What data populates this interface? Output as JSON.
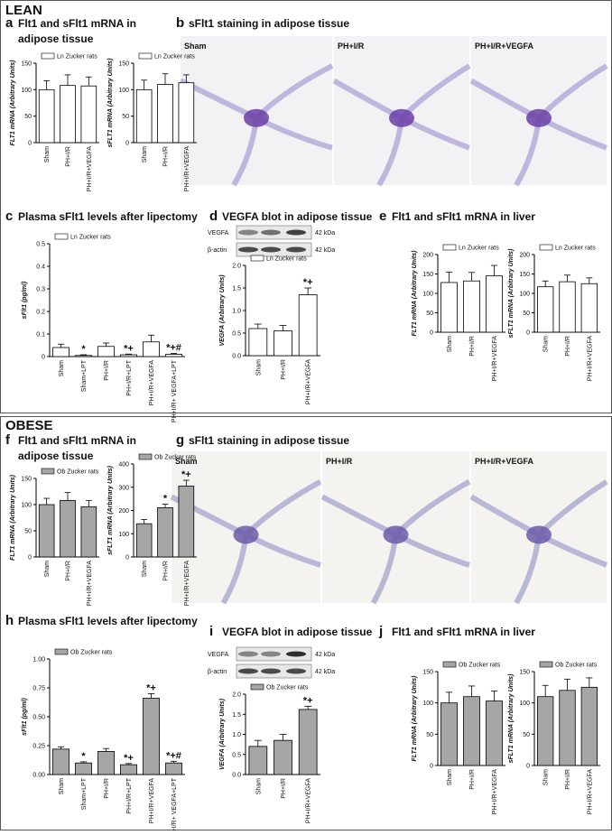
{
  "sections": [
    {
      "label": "LEAN",
      "panels": [
        {
          "letter": "a",
          "title": [
            "Flt1 and sFlt1 mRNA in",
            "adipose tissue"
          ]
        },
        {
          "letter": "b",
          "title": [
            "sFlt1 staining in adipose tissue"
          ],
          "images": [
            "Sham",
            "PH+I/R",
            "PH+I/R+VEGFA"
          ]
        },
        {
          "letter": "c",
          "title": [
            "Plasma sFlt1 levels after lipectomy"
          ]
        },
        {
          "letter": "d",
          "title": [
            "VEGFA blot in adipose tissue"
          ],
          "blot": {
            "bands": [
              "VEGFA",
              "β-actin"
            ],
            "sizes": [
              "42 kDa",
              "42 kDa"
            ]
          }
        },
        {
          "letter": "e",
          "title": [
            "Flt1 and sFlt1 mRNA in liver"
          ]
        }
      ]
    },
    {
      "label": "OBESE",
      "panels": [
        {
          "letter": "f",
          "title": [
            "Flt1 and sFlt1 mRNA in",
            "adipose tissue"
          ]
        },
        {
          "letter": "g",
          "title": [
            "sFlt1 staining in adipose tissue"
          ],
          "images": [
            "Sham",
            "PH+I/R",
            "PH+I/R+VEGFA"
          ]
        },
        {
          "letter": "h",
          "title": [
            "Plasma sFlt1 levels after lipectomy"
          ]
        },
        {
          "letter": "i",
          "title": [
            "VEGFA blot in adipose tissue"
          ],
          "blot": {
            "bands": [
              "VEGFA",
              "β-actin"
            ],
            "sizes": [
              "42 kDa",
              "42 kDa"
            ]
          }
        },
        {
          "letter": "j",
          "title": [
            "Flt1 and sFlt1 mRNA in liver"
          ]
        }
      ]
    }
  ],
  "chart_data": [
    {
      "type": "bar",
      "ylabel": "FLT1 mRNA (Arbitrary Units)",
      "categories": [
        "Sham",
        "PH+I/R",
        "PH+I/R+VEGFA"
      ],
      "series": [
        {
          "name": "Ln Zucker rats",
          "color": "#ffffff",
          "values": [
            100,
            108,
            107
          ],
          "errors": [
            17,
            20,
            17
          ]
        }
      ],
      "ylim": [
        0,
        150
      ],
      "yticks": [
        0,
        50,
        100,
        150
      ]
    },
    {
      "type": "bar",
      "ylabel": "sFLT1 mRNA (Arbitrary Units)",
      "categories": [
        "Sham",
        "PH+I/R",
        "PH+I/R+VEGFA"
      ],
      "series": [
        {
          "name": "Ln Zucker rats",
          "color": "#ffffff",
          "values": [
            100,
            110,
            113
          ],
          "errors": [
            18,
            20,
            15
          ]
        }
      ],
      "ylim": [
        0,
        150
      ],
      "yticks": [
        0,
        50,
        100,
        150
      ]
    },
    {
      "type": "bar",
      "ylabel": "sFlt1 (pg/ml)",
      "categories": [
        "Sham",
        "Sham+LPT",
        "PH+I/R",
        "PH+I/R+LPT",
        "PH+I/R+VEGFA",
        "PH+I/R+ VEGFA+LPT"
      ],
      "series": [
        {
          "name": "Ln Zucker rats",
          "color": "#ffffff",
          "values": [
            0.04,
            0.005,
            0.045,
            0.008,
            0.065,
            0.01
          ],
          "errors": [
            0.015,
            0.003,
            0.015,
            0.003,
            0.03,
            0.004
          ]
        }
      ],
      "ylim": [
        0,
        0.5
      ],
      "yticks": [
        0,
        0.1,
        0.2,
        0.3,
        0.4,
        0.5
      ],
      "annotations": [
        null,
        "*",
        null,
        "*+",
        null,
        "*+#"
      ]
    },
    {
      "type": "bar",
      "ylabel": "VEGFA (Arbitrary Units)",
      "categories": [
        "Sham",
        "PH+I/R",
        "PH+I/R+VEGFA"
      ],
      "series": [
        {
          "name": "Ln Zucker rats",
          "color": "#ffffff",
          "values": [
            0.6,
            0.55,
            1.35
          ],
          "errors": [
            0.1,
            0.12,
            0.15
          ]
        }
      ],
      "ylim": [
        0,
        2
      ],
      "yticks": [
        {
          "value": 0,
          "label": "0.0"
        },
        0.5,
        {
          "value": 1,
          "label": "1.0"
        },
        1.5,
        {
          "value": 2,
          "label": "2.0"
        }
      ],
      "annotations": [
        null,
        null,
        "*+"
      ]
    },
    {
      "type": "bar",
      "ylabel": "FLT1 mRNA (Arbitrary Units)",
      "categories": [
        "Sham",
        "PH+I/R",
        "PH+I/R+VEGFA"
      ],
      "series": [
        {
          "name": "Ln Zucker rats",
          "color": "#ffffff",
          "values": [
            128,
            132,
            145
          ],
          "errors": [
            27,
            22,
            27
          ]
        }
      ],
      "ylim": [
        0,
        200
      ],
      "yticks": [
        0,
        50,
        100,
        150,
        200
      ]
    },
    {
      "type": "bar",
      "ylabel": "sFLT1 mRNA (Arbitrary Units)",
      "categories": [
        "Sham",
        "PH+I/R",
        "PH+I/R+VEGFA"
      ],
      "series": [
        {
          "name": "Ln Zucker rats",
          "color": "#ffffff",
          "values": [
            117,
            130,
            125
          ],
          "errors": [
            15,
            17,
            15
          ]
        }
      ],
      "ylim": [
        0,
        200
      ],
      "yticks": [
        0,
        50,
        100,
        150,
        200
      ]
    },
    {
      "type": "bar",
      "ylabel": "FLT1 mRNA (Arbitrary Units)",
      "categories": [
        "Sham",
        "PH+I/R",
        "PH+I/R+VEGFA"
      ],
      "series": [
        {
          "name": "Ob Zucker rats",
          "color": "#a6a6a6",
          "values": [
            100,
            108,
            96
          ],
          "errors": [
            12,
            15,
            12
          ]
        }
      ],
      "ylim": [
        0,
        150
      ],
      "yticks": [
        0,
        50,
        100,
        150
      ]
    },
    {
      "type": "bar",
      "ylabel": "sFLT1 mRNA (Arbitrary Units)",
      "categories": [
        "Sham",
        "PH+I/R",
        "PH+I/R+VEGFA"
      ],
      "series": [
        {
          "name": "Ob Zucker rats",
          "color": "#a6a6a6",
          "values": [
            143,
            212,
            305
          ],
          "errors": [
            18,
            15,
            25
          ]
        }
      ],
      "ylim": [
        0,
        400
      ],
      "yticks": [
        0,
        100,
        200,
        300,
        400
      ],
      "annotations": [
        null,
        "*",
        "*+"
      ]
    },
    {
      "type": "bar",
      "ylabel": "sFlt1 (pg/ml)",
      "categories": [
        "Sham",
        "Sham+LPT",
        "PH+I/R",
        "PH+I/R+LPT",
        "PH+I/R+VEGFA",
        "PH+I/R+ VEGFA+LPT"
      ],
      "series": [
        {
          "name": "Ob Zucker rats",
          "color": "#a6a6a6",
          "values": [
            0.22,
            0.1,
            0.2,
            0.085,
            0.66,
            0.1
          ],
          "errors": [
            0.02,
            0.01,
            0.025,
            0.01,
            0.04,
            0.015
          ]
        }
      ],
      "ylim": [
        0,
        1
      ],
      "yticks": [
        {
          "value": 0,
          "label": "0.00"
        },
        0.25,
        {
          "value": 0.5,
          "label": "0.50"
        },
        0.75,
        {
          "value": 1,
          "label": "1.00"
        }
      ],
      "annotations": [
        null,
        "*",
        null,
        "*+",
        "*+",
        "*+#"
      ]
    },
    {
      "type": "bar",
      "ylabel": "VEGFA (Arbitrary Units)",
      "categories": [
        "Sham",
        "PH+I/R",
        "PH+I/R+VEGFA"
      ],
      "series": [
        {
          "name": "Ob Zucker rats",
          "color": "#a6a6a6",
          "values": [
            0.7,
            0.85,
            1.62
          ],
          "errors": [
            0.15,
            0.15,
            0.08
          ]
        }
      ],
      "ylim": [
        0,
        2
      ],
      "yticks": [
        {
          "value": 0,
          "label": "0.0"
        },
        0.5,
        {
          "value": 1,
          "label": "1.0"
        },
        1.5,
        {
          "value": 2,
          "label": "2.0"
        }
      ],
      "annotations": [
        null,
        null,
        "*+"
      ]
    },
    {
      "type": "bar",
      "ylabel": "FLT1 mRNA (Arbitrary Units)",
      "categories": [
        "Sham",
        "PH+I/R",
        "PH+I/R+VEGFA"
      ],
      "series": [
        {
          "name": "Ob Zucker rats",
          "color": "#a6a6a6",
          "values": [
            100,
            110,
            103
          ],
          "errors": [
            17,
            17,
            16
          ]
        }
      ],
      "ylim": [
        0,
        150
      ],
      "yticks": [
        0,
        50,
        100,
        150
      ]
    },
    {
      "type": "bar",
      "ylabel": "sFLT1 mRNA (Arbitrary Units)",
      "categories": [
        "Sham",
        "PH+I/R",
        "PH+I/R+VEGFA"
      ],
      "series": [
        {
          "name": "Ob Zucker rats",
          "color": "#a6a6a6",
          "values": [
            110,
            120,
            125
          ],
          "errors": [
            18,
            18,
            15
          ]
        }
      ],
      "ylim": [
        0,
        150
      ],
      "yticks": [
        0,
        50,
        100,
        150
      ]
    }
  ]
}
